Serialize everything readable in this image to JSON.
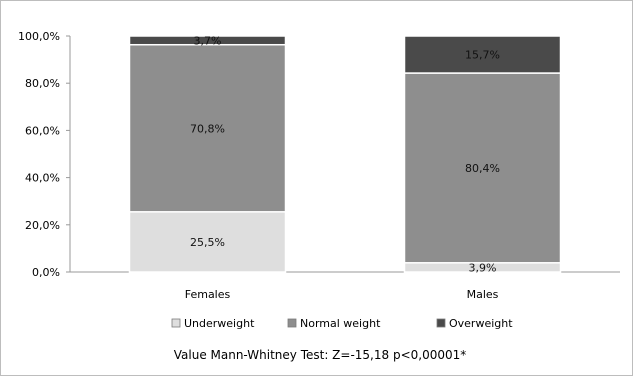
{
  "chart_data": {
    "type": "bar",
    "stacked": true,
    "percent": true,
    "categories": [
      "Females",
      "Males"
    ],
    "series": [
      {
        "name": "Underweight",
        "values": [
          25.5,
          3.9
        ],
        "labels": [
          "25,5%",
          "3,9%"
        ],
        "color": "#dedede"
      },
      {
        "name": "Normal weight",
        "values": [
          70.8,
          80.4
        ],
        "labels": [
          "70,8%",
          "80,4%"
        ],
        "color": "#8e8e8e"
      },
      {
        "name": "Overweight",
        "values": [
          3.7,
          15.7
        ],
        "labels": [
          "3,7%",
          "15,7%"
        ],
        "color": "#4a4a4a"
      }
    ],
    "ylim": [
      0,
      100
    ],
    "yticks": [
      0,
      20,
      40,
      60,
      80,
      100
    ],
    "ytick_labels": [
      "0,0%",
      "20,0%",
      "40,0%",
      "60,0%",
      "80,0%",
      "100,0%"
    ],
    "grid": false,
    "legend_position": "bottom",
    "annotation": "Value Mann-Whitney Test: Z=-15,18  p<0,00001*"
  }
}
